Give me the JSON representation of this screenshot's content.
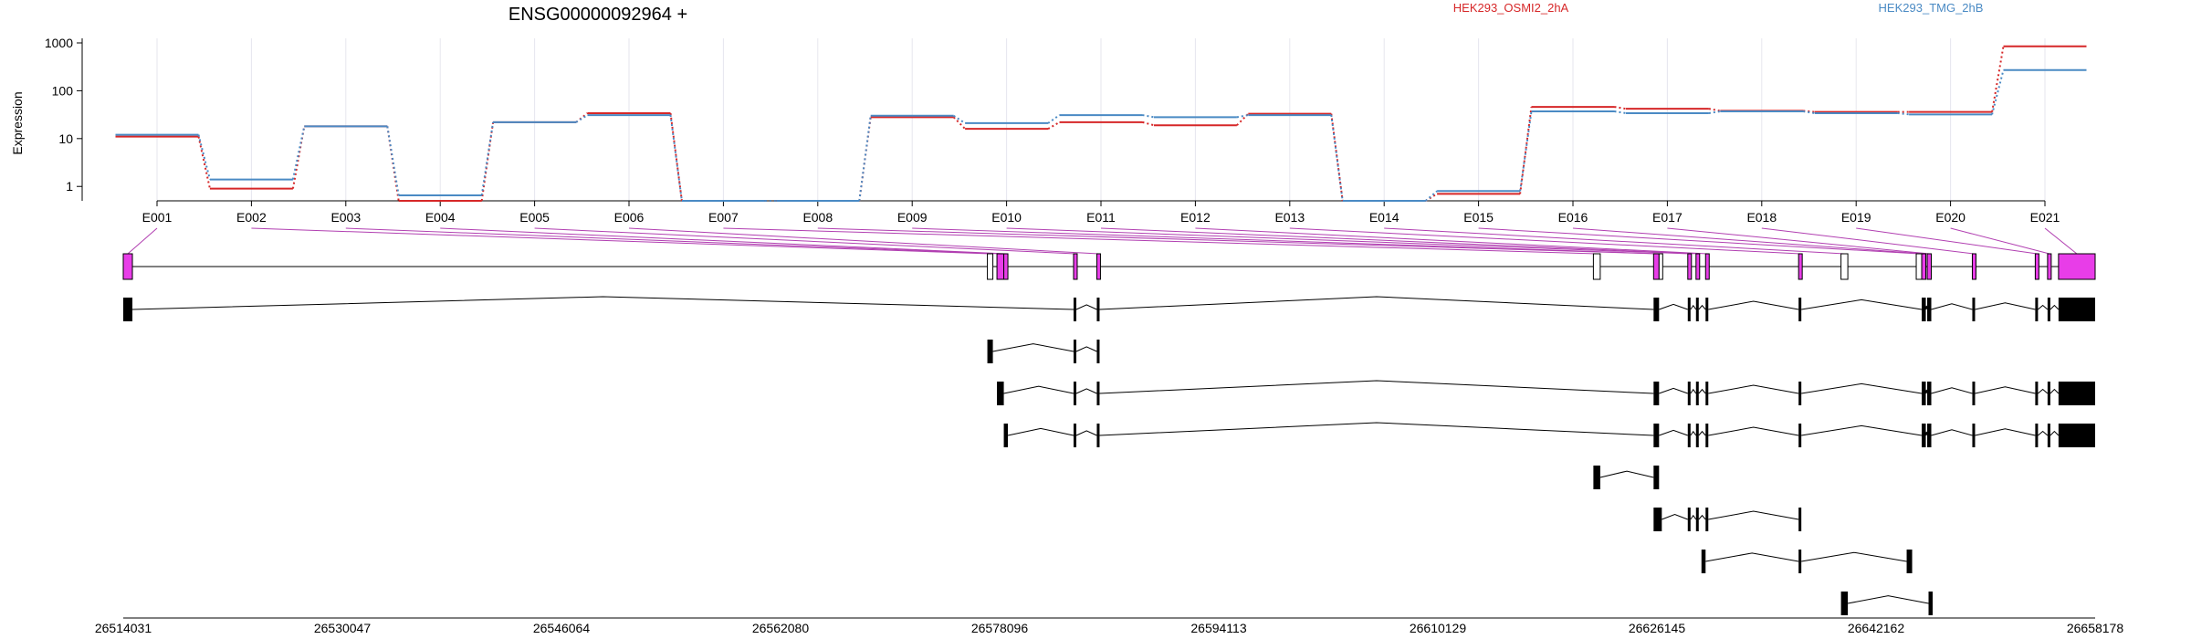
{
  "chart_data": {
    "type": "line",
    "title": "ENSG00000092964 +",
    "ylabel": "Expression",
    "yscale": "log",
    "ylim": [
      0.5,
      1000
    ],
    "yticks": [
      1,
      10,
      100,
      1000
    ],
    "ytick_labels": [
      "1",
      "10",
      "100",
      "1000"
    ],
    "categories": [
      "E001",
      "E002",
      "E003",
      "E004",
      "E005",
      "E006",
      "E007",
      "E008",
      "E009",
      "E010",
      "E011",
      "E012",
      "E013",
      "E014",
      "E015",
      "E016",
      "E017",
      "E018",
      "E019",
      "E020",
      "E021"
    ],
    "grid": true,
    "legend_position": "top",
    "series": [
      {
        "name": "HEK293_OSMI2_2hA",
        "color": "#d62728",
        "values": [
          11,
          0.9,
          18,
          0.5,
          22,
          34,
          0.5,
          0.5,
          28,
          16,
          22,
          19,
          33,
          0.5,
          0.7,
          46,
          42,
          38,
          36,
          36,
          850
        ]
      },
      {
        "name": "HEK293_TMG_2hB",
        "color": "#4a8ac4",
        "values": [
          12,
          1.4,
          18,
          0.65,
          22,
          31,
          0.5,
          0.5,
          30,
          21,
          31,
          28,
          31,
          0.5,
          0.8,
          37,
          34,
          37,
          34,
          32,
          270
        ]
      }
    ],
    "genomic_axis": {
      "range": [
        26514031,
        26658178
      ],
      "tick_labels": [
        "26514031",
        "26530047",
        "26546064",
        "26562080",
        "26578096",
        "26594113",
        "26610129",
        "26626145",
        "26642162",
        "26658178"
      ]
    },
    "gene_model": {
      "color_exon": "#e83de8",
      "exons": [
        {
          "start": 26514031,
          "end": 26514700,
          "state": "expr"
        },
        {
          "start": 26577200,
          "end": 26577600,
          "state": "open"
        },
        {
          "start": 26577900,
          "end": 26578400,
          "state": "expr"
        },
        {
          "start": 26578400,
          "end": 26578700,
          "state": "expr"
        },
        {
          "start": 26583500,
          "end": 26583700,
          "state": "expr"
        },
        {
          "start": 26585200,
          "end": 26585400,
          "state": "expr"
        },
        {
          "start": 26621500,
          "end": 26622000,
          "state": "open"
        },
        {
          "start": 26625900,
          "end": 26626300,
          "state": "expr"
        },
        {
          "start": 26626300,
          "end": 26626500,
          "state": "open"
        },
        {
          "start": 26628400,
          "end": 26628600,
          "state": "expr"
        },
        {
          "start": 26629000,
          "end": 26629200,
          "state": "expr"
        },
        {
          "start": 26629700,
          "end": 26629900,
          "state": "expr"
        },
        {
          "start": 26636500,
          "end": 26636700,
          "state": "expr"
        },
        {
          "start": 26639600,
          "end": 26640100,
          "state": "open"
        },
        {
          "start": 26645100,
          "end": 26645500,
          "state": "open"
        },
        {
          "start": 26645500,
          "end": 26645800,
          "state": "expr"
        },
        {
          "start": 26645900,
          "end": 26646200,
          "state": "expr"
        },
        {
          "start": 26649200,
          "end": 26649400,
          "state": "expr"
        },
        {
          "start": 26653800,
          "end": 26654000,
          "state": "expr"
        },
        {
          "start": 26654700,
          "end": 26654900,
          "state": "expr"
        },
        {
          "start": 26655500,
          "end": 26658178,
          "state": "expr"
        }
      ],
      "exon_labels": [
        "E001",
        "E002",
        "E003",
        "E004",
        "E005",
        "E006",
        "E007",
        "E008",
        "E009",
        "E010",
        "E011",
        "E012",
        "E013",
        "E014",
        "E015",
        "E016",
        "E017",
        "E018",
        "E019",
        "E020",
        "E021"
      ],
      "exon_map": [
        0,
        1,
        2,
        3,
        4,
        5,
        6,
        7,
        8,
        9,
        10,
        11,
        12,
        13,
        14,
        15,
        16,
        17,
        18,
        19,
        20
      ]
    },
    "transcripts": [
      {
        "exons": [
          [
            26514031,
            26514700
          ],
          [
            26583500,
            26583700
          ],
          [
            26585200,
            26585400
          ],
          [
            26625900,
            26626300
          ],
          [
            26628400,
            26628600
          ],
          [
            26629000,
            26629200
          ],
          [
            26629700,
            26629900
          ],
          [
            26636500,
            26636700
          ],
          [
            26645500,
            26645800
          ],
          [
            26645900,
            26646200
          ],
          [
            26649200,
            26649400
          ],
          [
            26653800,
            26654000
          ],
          [
            26654700,
            26654900
          ],
          [
            26655500,
            26658178
          ]
        ]
      },
      {
        "exons": [
          [
            26577200,
            26577600
          ],
          [
            26583500,
            26583700
          ],
          [
            26585200,
            26585400
          ]
        ]
      },
      {
        "exons": [
          [
            26577900,
            26578400
          ],
          [
            26583500,
            26583700
          ],
          [
            26585200,
            26585400
          ],
          [
            26625900,
            26626300
          ],
          [
            26628400,
            26628600
          ],
          [
            26629000,
            26629200
          ],
          [
            26629700,
            26629900
          ],
          [
            26636500,
            26636700
          ],
          [
            26645500,
            26645800
          ],
          [
            26645900,
            26646200
          ],
          [
            26649200,
            26649400
          ],
          [
            26653800,
            26654000
          ],
          [
            26654700,
            26654900
          ],
          [
            26655500,
            26658178
          ]
        ]
      },
      {
        "exons": [
          [
            26578400,
            26578700
          ],
          [
            26583500,
            26583700
          ],
          [
            26585200,
            26585400
          ],
          [
            26625900,
            26626300
          ],
          [
            26628400,
            26628600
          ],
          [
            26629000,
            26629200
          ],
          [
            26629700,
            26629900
          ],
          [
            26636500,
            26636700
          ],
          [
            26645500,
            26645800
          ],
          [
            26645900,
            26646200
          ],
          [
            26649200,
            26649400
          ],
          [
            26653800,
            26654000
          ],
          [
            26654700,
            26654900
          ],
          [
            26655500,
            26658178
          ]
        ]
      },
      {
        "exons": [
          [
            26621500,
            26622000
          ],
          [
            26625900,
            26626300
          ]
        ]
      },
      {
        "exons": [
          [
            26625900,
            26626500
          ],
          [
            26628400,
            26628600
          ],
          [
            26629000,
            26629200
          ],
          [
            26629700,
            26629900
          ],
          [
            26636500,
            26636700
          ]
        ]
      },
      {
        "exons": [
          [
            26629400,
            26629700
          ],
          [
            26636500,
            26636700
          ],
          [
            26644400,
            26644800
          ]
        ]
      },
      {
        "exons": [
          [
            26639600,
            26640100
          ],
          [
            26646000,
            26646300
          ]
        ]
      }
    ]
  }
}
